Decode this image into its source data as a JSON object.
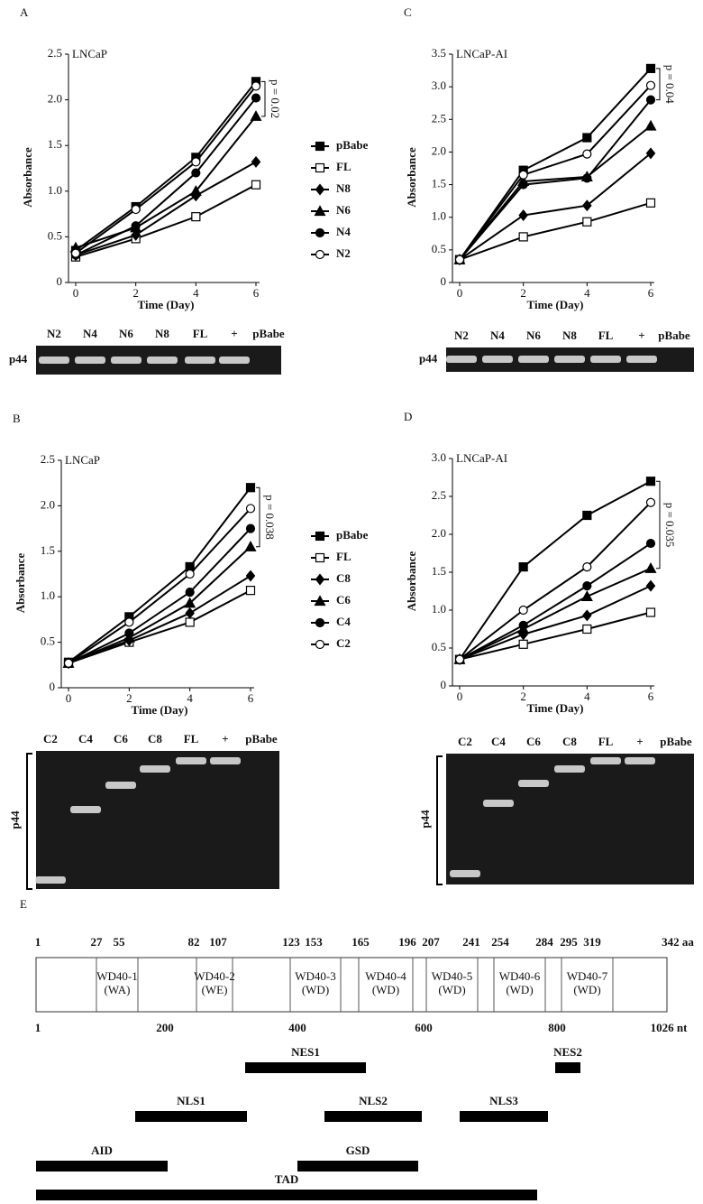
{
  "chart_data": [
    {
      "type": "line",
      "panel": "A",
      "title": "LNCaP",
      "xlabel": "Time (Day)",
      "ylabel": "Absorbance",
      "annotation": "p = 0.02",
      "legend": "right",
      "x": [
        0,
        2,
        4,
        6
      ],
      "xlim": [
        0,
        6
      ],
      "xticks": [
        0,
        2,
        4,
        6
      ],
      "ylim": [
        0,
        2.5
      ],
      "yticks": [
        0,
        0.5,
        {
          "value": 1,
          "label": "1.0"
        },
        1.5,
        {
          "value": 2,
          "label": "2.0"
        },
        2.5
      ],
      "series": [
        {
          "name": "pBabe",
          "marker": "filled-square",
          "color": "#000",
          "values": [
            0.35,
            0.83,
            1.37,
            2.2
          ]
        },
        {
          "name": "FL",
          "marker": "open-square",
          "color": "#000",
          "values": [
            0.28,
            0.48,
            0.72,
            1.07
          ]
        },
        {
          "name": "N8",
          "marker": "filled-diamond",
          "color": "#000",
          "values": [
            0.3,
            0.52,
            0.95,
            1.32
          ]
        },
        {
          "name": "N6",
          "marker": "filled-triangle",
          "color": "#000",
          "values": [
            0.38,
            0.6,
            1.0,
            1.82
          ]
        },
        {
          "name": "N4",
          "marker": "filled-circle",
          "color": "#000",
          "values": [
            0.3,
            0.62,
            1.2,
            2.02
          ]
        },
        {
          "name": "N2",
          "marker": "open-circle",
          "color": "#000",
          "values": [
            0.32,
            0.8,
            1.32,
            2.15
          ]
        }
      ]
    },
    {
      "type": "line",
      "panel": "B",
      "title": "LNCaP",
      "xlabel": "Time (Day)",
      "ylabel": "Absorbance",
      "annotation": "p = 0.038",
      "legend": "right",
      "x": [
        0,
        2,
        4,
        6
      ],
      "xlim": [
        0,
        6
      ],
      "xticks": [
        0,
        2,
        4,
        6
      ],
      "ylim": [
        0,
        2.5
      ],
      "yticks": [
        0,
        0.5,
        {
          "value": 1,
          "label": "1.0"
        },
        1.5,
        {
          "value": 2,
          "label": "2.0"
        },
        2.5
      ],
      "series": [
        {
          "name": "pBabe",
          "marker": "filled-square",
          "color": "#000",
          "values": [
            0.28,
            0.78,
            1.33,
            2.2
          ]
        },
        {
          "name": "FL",
          "marker": "open-square",
          "color": "#000",
          "values": [
            0.27,
            0.5,
            0.72,
            1.07
          ]
        },
        {
          "name": "C8",
          "marker": "filled-diamond",
          "color": "#000",
          "values": [
            0.27,
            0.52,
            0.82,
            1.23
          ]
        },
        {
          "name": "C6",
          "marker": "filled-triangle",
          "color": "#000",
          "values": [
            0.27,
            0.55,
            0.93,
            1.55
          ]
        },
        {
          "name": "C4",
          "marker": "filled-circle",
          "color": "#000",
          "values": [
            0.27,
            0.6,
            1.05,
            1.75
          ]
        },
        {
          "name": "C2",
          "marker": "open-circle",
          "color": "#000",
          "values": [
            0.27,
            0.72,
            1.25,
            1.97
          ]
        }
      ]
    },
    {
      "type": "line",
      "panel": "C",
      "title": "LNCaP-AI",
      "xlabel": "Time (Day)",
      "ylabel": "Absorbance",
      "annotation": "p = 0.04",
      "x": [
        0,
        2,
        4,
        6
      ],
      "xlim": [
        0,
        6
      ],
      "xticks": [
        0,
        2,
        4,
        6
      ],
      "ylim": [
        0,
        3.5
      ],
      "yticks": [
        0,
        0.5,
        {
          "value": 1,
          "label": "1.0"
        },
        1.5,
        {
          "value": 2,
          "label": "2.0"
        },
        2.5,
        {
          "value": 3,
          "label": "3.0"
        },
        3.5
      ],
      "series": [
        {
          "marker": "filled-square",
          "color": "#000",
          "values": [
            0.35,
            1.72,
            2.22,
            3.28
          ]
        },
        {
          "marker": "open-square",
          "color": "#000",
          "values": [
            0.35,
            0.7,
            0.93,
            1.22
          ]
        },
        {
          "marker": "filled-diamond",
          "color": "#000",
          "values": [
            0.35,
            1.03,
            1.18,
            1.98
          ]
        },
        {
          "marker": "filled-triangle",
          "color": "#000",
          "values": [
            0.35,
            1.55,
            1.62,
            2.4
          ]
        },
        {
          "marker": "filled-circle",
          "color": "#000",
          "values": [
            0.35,
            1.5,
            1.6,
            2.8
          ]
        },
        {
          "marker": "open-circle",
          "color": "#000",
          "values": [
            0.35,
            1.65,
            1.97,
            3.02
          ]
        }
      ]
    },
    {
      "type": "line",
      "panel": "D",
      "title": "LNCaP-AI",
      "xlabel": "Time (Day)",
      "ylabel": "Absorbance",
      "annotation": "p = 0.035",
      "x": [
        0,
        2,
        4,
        6
      ],
      "xlim": [
        0,
        6
      ],
      "xticks": [
        0,
        2,
        4,
        6
      ],
      "ylim": [
        0,
        3
      ],
      "yticks": [
        0,
        0.5,
        {
          "value": 1,
          "label": "1.0"
        },
        1.5,
        {
          "value": 2,
          "label": "2.0"
        },
        2.5,
        {
          "value": 3,
          "label": "3.0"
        }
      ],
      "series": [
        {
          "marker": "filled-square",
          "color": "#000",
          "values": [
            0.35,
            1.57,
            2.25,
            2.7
          ]
        },
        {
          "marker": "open-square",
          "color": "#000",
          "values": [
            0.35,
            0.55,
            0.75,
            0.97
          ]
        },
        {
          "marker": "filled-diamond",
          "color": "#000",
          "values": [
            0.35,
            0.68,
            0.93,
            1.32
          ]
        },
        {
          "marker": "filled-triangle",
          "color": "#000",
          "values": [
            0.35,
            0.75,
            1.18,
            1.55
          ]
        },
        {
          "marker": "filled-circle",
          "color": "#000",
          "values": [
            0.35,
            0.8,
            1.32,
            1.88
          ]
        },
        {
          "marker": "open-circle",
          "color": "#000",
          "values": [
            0.35,
            1.0,
            1.57,
            2.42
          ]
        }
      ]
    }
  ],
  "gels": [
    {
      "lanes": [
        "N2",
        "N4",
        "N6",
        "N8",
        "FL",
        "+",
        "pBabe"
      ],
      "protein": "p44"
    },
    {
      "lanes": [
        "C2",
        "C4",
        "C6",
        "C8",
        "FL",
        "+",
        "pBabe"
      ],
      "protein": "p44"
    },
    {
      "lanes": [
        "N2",
        "N4",
        "N6",
        "N8",
        "FL",
        "+",
        "pBabe"
      ],
      "protein": "p44"
    },
    {
      "lanes": [
        "C2",
        "C4",
        "C6",
        "C8",
        "FL",
        "+",
        "pBabe"
      ],
      "protein": "p44"
    }
  ],
  "diagram": {
    "panel": "E",
    "aa_labels": [
      "1",
      "27",
      "55",
      "82",
      "107",
      "123",
      "153",
      "165",
      "196",
      "207",
      "241",
      "254",
      "284",
      "295",
      "319",
      "342 aa"
    ],
    "domains": [
      {
        "name": "WD40-1",
        "motif": "(WA)"
      },
      {
        "name": "WD40-2",
        "motif": "(WE)"
      },
      {
        "name": "WD40-3",
        "motif": "(WD)"
      },
      {
        "name": "WD40-4",
        "motif": "(WD)"
      },
      {
        "name": "WD40-5",
        "motif": "(WD)"
      },
      {
        "name": "WD40-6",
        "motif": "(WD)"
      },
      {
        "name": "WD40-7",
        "motif": "(WD)"
      }
    ],
    "nt_labels": [
      "1",
      "200",
      "400",
      "600",
      "800",
      "1026 nt"
    ],
    "regions": [
      "NES1",
      "NES2",
      "NLS1",
      "NLS2",
      "NLS3",
      "AID",
      "GSD",
      "TAD"
    ]
  }
}
